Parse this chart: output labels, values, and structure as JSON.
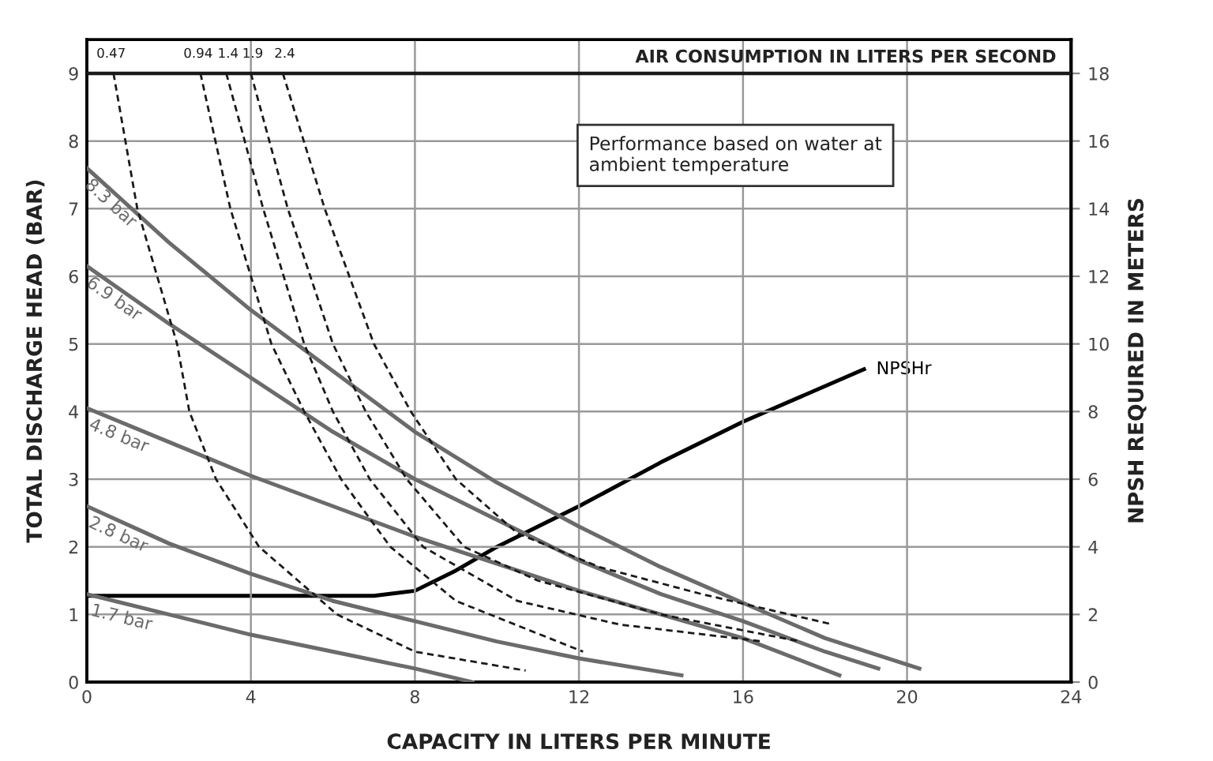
{
  "chart_data": {
    "type": "line",
    "xlabel": "CAPACITY IN LITERS PER MINUTE",
    "ylabel": "TOTAL DISCHARGE HEAD (BAR)",
    "y2label": "NPSH REQUIRED IN METERS",
    "xlim": [
      0,
      24
    ],
    "xticks": [
      0,
      4,
      8,
      12,
      16,
      20,
      24
    ],
    "ylim": [
      0,
      9.5
    ],
    "yticks": [
      0,
      1,
      2,
      3,
      4,
      5,
      6,
      7,
      8,
      9
    ],
    "y2lim": [
      0,
      19
    ],
    "y2ticks": [
      0,
      2,
      4,
      6,
      8,
      10,
      12,
      14,
      16,
      18
    ],
    "grid": true,
    "legend": false,
    "marker": "none",
    "ref_lines": [
      {
        "axis": "y",
        "value": 9,
        "color": "#1a1a1a"
      }
    ],
    "annotations": [
      "AIR CONSUMPTION IN LITERS PER SECOND",
      "Performance based on water at\nambient temperature"
    ],
    "series": [
      {
        "name": "8.3 bar",
        "color": "#6b6b6b",
        "line_style": "solid",
        "x": [
          0,
          2,
          4,
          6,
          8,
          10,
          12,
          14,
          16,
          18,
          20.3
        ],
        "values": [
          7.6,
          6.5,
          5.5,
          4.6,
          3.7,
          2.95,
          2.3,
          1.7,
          1.17,
          0.65,
          0.2
        ]
      },
      {
        "name": "6.9 bar",
        "color": "#6b6b6b",
        "line_style": "solid",
        "x": [
          0,
          2,
          4,
          6,
          8,
          10,
          12,
          14,
          16,
          18,
          19.3
        ],
        "values": [
          6.15,
          5.3,
          4.5,
          3.7,
          3.0,
          2.4,
          1.8,
          1.3,
          0.9,
          0.45,
          0.2
        ]
      },
      {
        "name": "4.8 bar",
        "color": "#6b6b6b",
        "line_style": "solid",
        "x": [
          0,
          2,
          4,
          6,
          8,
          10,
          12,
          14,
          16,
          18.35
        ],
        "values": [
          4.05,
          3.55,
          3.05,
          2.6,
          2.15,
          1.75,
          1.35,
          1.0,
          0.65,
          0.1
        ]
      },
      {
        "name": "2.8 bar",
        "color": "#6b6b6b",
        "line_style": "solid",
        "x": [
          0,
          2,
          4,
          6,
          8,
          10,
          12,
          14.5
        ],
        "values": [
          2.6,
          2.05,
          1.6,
          1.2,
          0.9,
          0.6,
          0.35,
          0.1
        ]
      },
      {
        "name": "1.7 bar",
        "color": "#6b6b6b",
        "line_style": "solid",
        "x": [
          0,
          2,
          4,
          6,
          8,
          9.4
        ],
        "values": [
          1.3,
          1.0,
          0.7,
          0.45,
          0.2,
          0
        ]
      },
      {
        "name": "0.47",
        "color": "#1a1a1a",
        "line_style": "dashed",
        "x": [
          0.65,
          1.23,
          2.2,
          2.5,
          3.15,
          4.2,
          6.1,
          8,
          10.7
        ],
        "values": [
          9,
          7,
          5,
          4,
          3,
          2,
          1,
          0.45,
          0.17
        ]
      },
      {
        "name": "0.94",
        "color": "#1a1a1a",
        "line_style": "dashed",
        "x": [
          2.77,
          3.5,
          4.5,
          5.3,
          6.2,
          7.4,
          9,
          12.1
        ],
        "values": [
          9,
          7,
          5,
          4,
          3,
          2,
          1.2,
          0.45
        ]
      },
      {
        "name": "1.4",
        "color": "#1a1a1a",
        "line_style": "dashed",
        "x": [
          3.4,
          4.3,
          5.3,
          6,
          6.9,
          8.2,
          10.5,
          13,
          16.5
        ],
        "values": [
          9,
          7,
          5,
          4,
          3,
          2,
          1.2,
          0.85,
          0.6
        ]
      },
      {
        "name": "1.9",
        "color": "#1a1a1a",
        "line_style": "dashed",
        "x": [
          4.0,
          4.9,
          6.0,
          6.8,
          7.8,
          9.2,
          11,
          14,
          17.4
        ],
        "values": [
          9,
          7,
          5,
          4,
          3,
          2,
          1.5,
          1.0,
          0.6
        ]
      },
      {
        "name": "2.4",
        "color": "#1a1a1a",
        "line_style": "dashed",
        "x": [
          4.78,
          5.8,
          7.0,
          7.9,
          9.0,
          10.5,
          12.5,
          15,
          18.2
        ],
        "values": [
          9,
          7,
          5,
          4,
          3,
          2.2,
          1.7,
          1.3,
          0.85
        ]
      },
      {
        "name": "NPSHr",
        "color": "#000000",
        "line_style": "solid",
        "axis": "y2",
        "x": [
          0,
          7,
          8,
          9,
          10,
          12,
          14,
          16,
          18.95
        ],
        "values": [
          2.55,
          2.55,
          2.7,
          3.3,
          4.0,
          5.2,
          6.5,
          7.7,
          9.25
        ]
      }
    ]
  }
}
